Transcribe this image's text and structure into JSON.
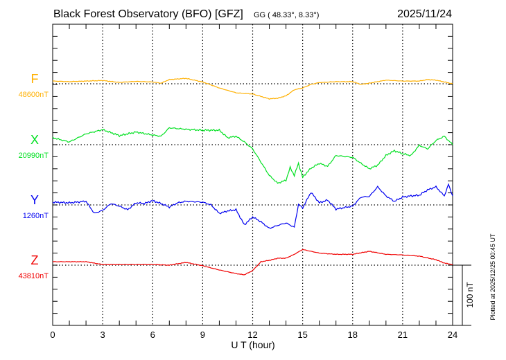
{
  "header": {
    "title": "Black Forest Observatory (BFO)  [GFZ]",
    "coords": "GG ( 48.33°,   8.33°)",
    "date": "2025/11/24"
  },
  "footer": {
    "plotted": "Plotted at 2025/12/25 00:45 UT",
    "scale_label": "100 nT"
  },
  "chart_data": {
    "type": "line",
    "title": "Black Forest Observatory (BFO)  [GFZ]",
    "xlabel": "U T (hour)",
    "ylabel": "",
    "xlim": [
      0,
      24
    ],
    "xticks": [
      "0",
      "3",
      "6",
      "9",
      "12",
      "15",
      "18",
      "21",
      "24"
    ],
    "scale_bar_nT": 100,
    "grid": true,
    "series": [
      {
        "name": "F",
        "baseline_label": "48600nT",
        "baseline": 48600,
        "color": "#FFB000",
        "x": [
          0,
          1,
          2,
          3,
          4,
          5,
          6,
          6.5,
          7,
          8,
          9,
          10,
          11,
          12,
          13,
          13.5,
          14,
          14.5,
          15,
          15.5,
          16,
          17,
          18,
          18.5,
          19,
          20,
          21,
          22,
          22.5,
          23,
          24
        ],
        "values": [
          4.5,
          3.5,
          4.5,
          5.4,
          2.3,
          4,
          3,
          1,
          7,
          9,
          3,
          -7,
          -15,
          -17,
          -25,
          -24,
          -20,
          -10,
          -7,
          -1,
          2,
          3.5,
          3.5,
          -1,
          1,
          6,
          4.5,
          4.5,
          7,
          6,
          0
        ]
      },
      {
        "name": "X",
        "baseline_label": "20990nT",
        "baseline": 20990,
        "color": "#00E020",
        "x": [
          0,
          1,
          2,
          3,
          4,
          5,
          6,
          6.5,
          7,
          8,
          9,
          10,
          10.5,
          11,
          11.5,
          12,
          12.5,
          13,
          13.5,
          14,
          14.25,
          14.5,
          14.75,
          15,
          15.5,
          16,
          16.5,
          17,
          18,
          18.5,
          19,
          19.5,
          20,
          20.5,
          21,
          21.5,
          22,
          22.5,
          23,
          23.5,
          24
        ],
        "values": [
          11.5,
          4.6,
          18,
          25,
          15,
          21,
          16,
          14,
          28,
          25.5,
          24,
          24,
          11.5,
          14,
          4.6,
          -7,
          -29,
          -51,
          -64,
          -59,
          -38,
          -51,
          -31,
          -54,
          -39,
          -31,
          -36,
          -18,
          -21,
          -31,
          -40,
          -34,
          -18,
          -10,
          -15,
          -18,
          -1,
          -7,
          7,
          14,
          0
        ]
      },
      {
        "name": "Y",
        "baseline_label": "1260nT",
        "baseline": 1260,
        "color": "#0000F0",
        "x": [
          0,
          1,
          2,
          2.5,
          3,
          3.5,
          4,
          4.5,
          5,
          5.5,
          6,
          6.5,
          7,
          7.5,
          8,
          9,
          9.5,
          10,
          10.5,
          11,
          11.5,
          12,
          12.5,
          13,
          13.5,
          14,
          14.5,
          14.75,
          15,
          15.5,
          16,
          16.5,
          17,
          18,
          18.5,
          19,
          19.5,
          20,
          20.5,
          21,
          21.5,
          22,
          22.5,
          23,
          23.5,
          23.75,
          24
        ],
        "values": [
          4.6,
          3.5,
          6,
          -14,
          -9,
          2.3,
          -2,
          -8,
          3.5,
          2.3,
          7,
          2.3,
          -3.5,
          3.5,
          6,
          4.6,
          0,
          -14,
          -10,
          -8,
          -33,
          -20,
          -28,
          -39,
          -34,
          -30,
          -37,
          1,
          -5,
          21,
          3.5,
          8,
          -7,
          -2,
          13,
          14,
          30,
          15,
          6,
          13,
          15,
          16,
          25,
          30,
          15,
          34,
          15
        ]
      },
      {
        "name": "Z",
        "baseline_label": "43810nT",
        "baseline": 43810,
        "color": "#F00000",
        "x": [
          0,
          2,
          3,
          6,
          7,
          8,
          9,
          10,
          11,
          11.5,
          12,
          12.5,
          13,
          13.5,
          14,
          14.5,
          15,
          15.5,
          16,
          17,
          18,
          19,
          20,
          21,
          22,
          23,
          23.5,
          24
        ],
        "values": [
          5.7,
          5.7,
          1,
          1,
          0,
          4.6,
          -1,
          -8,
          -14,
          -16,
          -9,
          5.7,
          8,
          11.5,
          11.5,
          18,
          26,
          23,
          20,
          18,
          18,
          23,
          18,
          17,
          15,
          9,
          3.5,
          1
        ]
      }
    ]
  }
}
